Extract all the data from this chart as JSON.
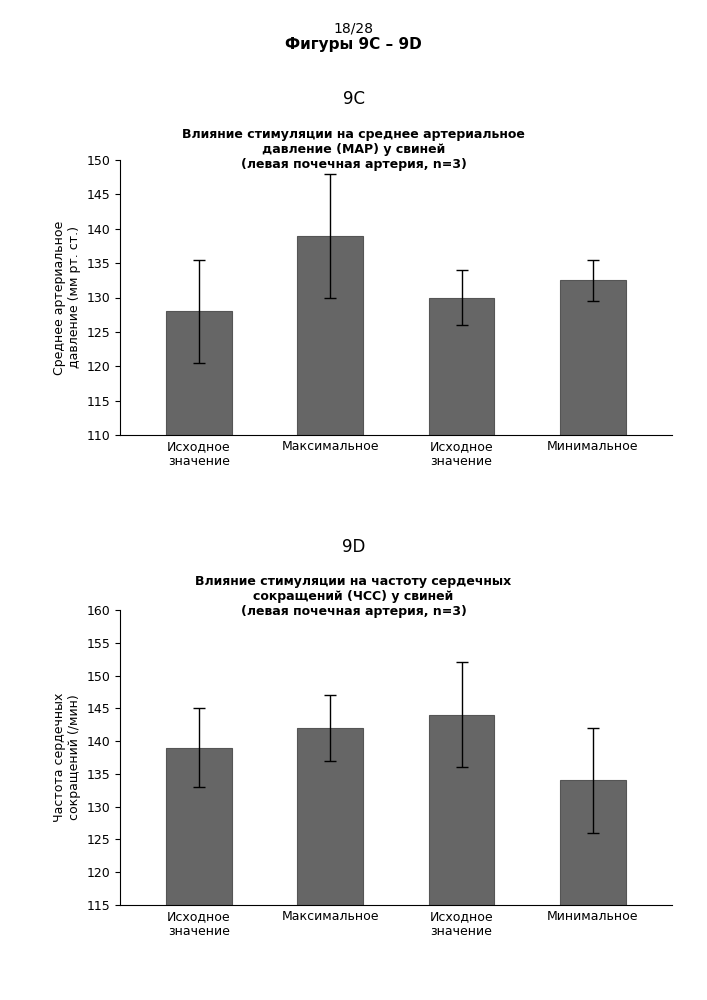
{
  "page_label": "18/28",
  "page_title": "Фигуры 9C – 9D",
  "chart1_label": "9C",
  "chart1_title_line1": "Влияние стимуляции на среднее артериальное",
  "chart1_title_line2": "давление (MAP) у свиней",
  "chart1_title_line3": "(левая почечная артерия, n=3)",
  "chart1_ylabel": "Среднее артериальное\nдавление (мм рт. ст.)",
  "chart1_values": [
    128,
    139,
    130,
    132.5
  ],
  "chart1_errors": [
    7.5,
    9,
    4,
    3
  ],
  "chart1_ylim": [
    110,
    150
  ],
  "chart1_yticks": [
    110,
    115,
    120,
    125,
    130,
    135,
    140,
    145,
    150
  ],
  "chart2_label": "9D",
  "chart2_title_line1": "Влияние стимуляции на частоту сердечных",
  "chart2_title_line2": "сокращений (ЧСС) у свиней",
  "chart2_title_line3": "(левая почечная артерия, n=3)",
  "chart2_ylabel": "Частота сердечных\nсокращений (/мин)",
  "chart2_values": [
    139,
    142,
    144,
    134
  ],
  "chart2_errors": [
    6,
    5,
    8,
    8
  ],
  "chart2_ylim": [
    115,
    160
  ],
  "chart2_yticks": [
    115,
    120,
    125,
    130,
    135,
    140,
    145,
    150,
    155,
    160
  ],
  "categories": [
    "Исходное\nзначение",
    "Максимальное",
    "Исходное\nзначение",
    "Минимальное"
  ],
  "bar_color": "#666666",
  "bar_edge_color": "#555555",
  "background_color": "#ffffff",
  "bar_width": 0.5
}
